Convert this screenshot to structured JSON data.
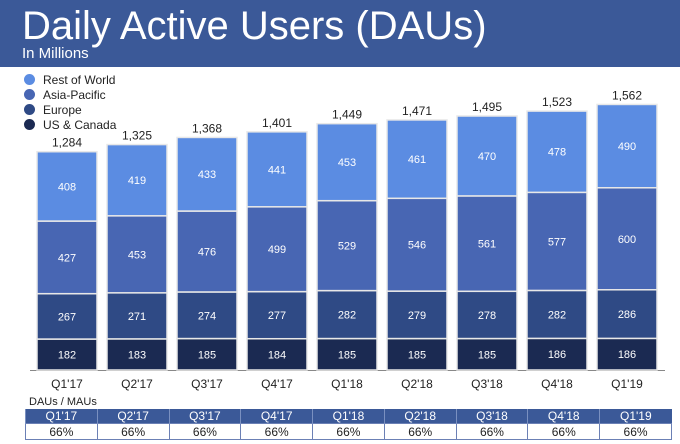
{
  "header": {
    "title": "Daily Active Users (DAUs)",
    "subtitle": "In Millions"
  },
  "chart_data": {
    "type": "bar",
    "stacked": true,
    "title": "Daily Active Users (DAUs)",
    "subtitle": "In Millions",
    "categories": [
      "Q1'17",
      "Q2'17",
      "Q3'17",
      "Q4'17",
      "Q1'18",
      "Q2'18",
      "Q3'18",
      "Q4'18",
      "Q1'19"
    ],
    "totals": [
      "1,284",
      "1,325",
      "1,368",
      "1,401",
      "1,449",
      "1,471",
      "1,495",
      "1,523",
      "1,562"
    ],
    "series": [
      {
        "name": "US & Canada",
        "color": "#1b2a52",
        "values": [
          182,
          183,
          185,
          184,
          185,
          185,
          185,
          186,
          186
        ]
      },
      {
        "name": "Europe",
        "color": "#2f4a85",
        "values": [
          267,
          271,
          274,
          277,
          282,
          279,
          278,
          282,
          286
        ]
      },
      {
        "name": "Asia-Pacific",
        "color": "#4866b3",
        "values": [
          427,
          453,
          476,
          499,
          529,
          546,
          561,
          577,
          600
        ]
      },
      {
        "name": "Rest of World",
        "color": "#5b8ce2",
        "values": [
          408,
          419,
          433,
          441,
          453,
          461,
          470,
          478,
          490
        ]
      }
    ],
    "legend_placement": "top-left",
    "grid": false
  },
  "table": {
    "label": "DAUs / MAUs",
    "headers": [
      "Q1'17",
      "Q2'17",
      "Q3'17",
      "Q4'17",
      "Q1'18",
      "Q2'18",
      "Q3'18",
      "Q4'18",
      "Q1'19"
    ],
    "values": [
      "66%",
      "66%",
      "66%",
      "66%",
      "66%",
      "66%",
      "66%",
      "66%",
      "66%"
    ]
  }
}
